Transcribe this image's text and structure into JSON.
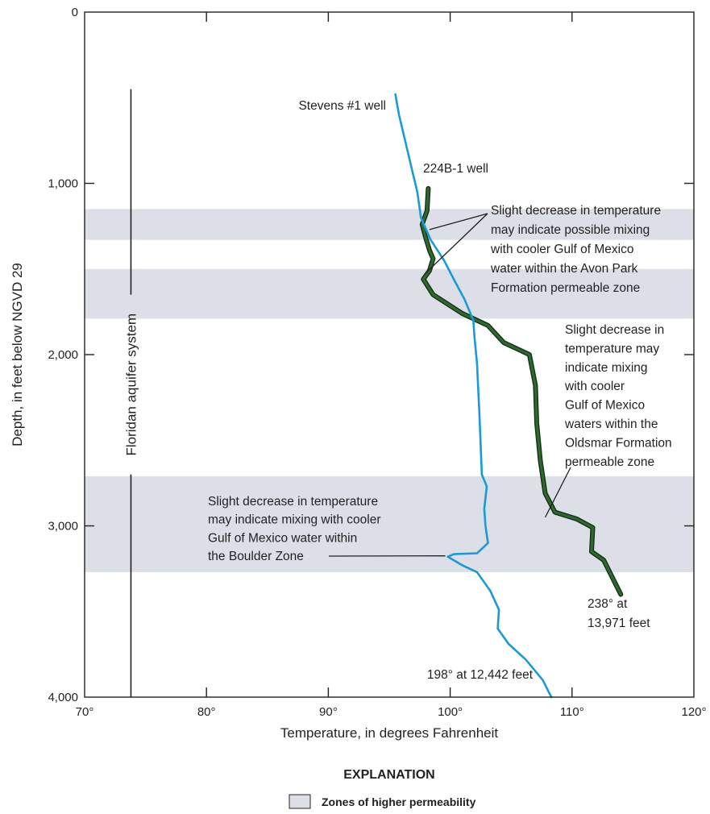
{
  "chart_data": {
    "type": "line",
    "orientation": "depth-profile",
    "xlabel": "Temperature, in degrees Fahrenheit",
    "ylabel": "Depth, in feet below NGVD 29",
    "xlim": [
      70,
      120
    ],
    "ylim": [
      0,
      4000
    ],
    "y_inverted": true,
    "x_ticks": [
      {
        "value": 70,
        "label": "70°"
      },
      {
        "value": 80,
        "label": "80°"
      },
      {
        "value": 90,
        "label": "90°"
      },
      {
        "value": 100,
        "label": "100°"
      },
      {
        "value": 110,
        "label": "110°"
      },
      {
        "value": 120,
        "label": "120°"
      }
    ],
    "y_ticks": [
      {
        "value": 0,
        "label": "0"
      },
      {
        "value": 1000,
        "label": "1,000"
      },
      {
        "value": 2000,
        "label": "2,000"
      },
      {
        "value": 3000,
        "label": "3,000"
      },
      {
        "value": 4000,
        "label": "4,000"
      }
    ],
    "grid": false,
    "colors": {
      "stevens": "#1a9ad6",
      "well224": "#2f6a2c",
      "well224_outline": "#13301a",
      "zone": "#dcdfe8",
      "axis": "#231f20"
    },
    "zones": [
      {
        "top": 1150,
        "bottom": 1330
      },
      {
        "top": 1500,
        "bottom": 1790
      },
      {
        "top": 2710,
        "bottom": 3270
      }
    ],
    "aquifer_bar": {
      "label": "Floridan aquifer system",
      "x": 73.8,
      "top": 450,
      "bottom": 4000
    },
    "series": [
      {
        "name": "Stevens #1 well",
        "color": "#1a9ad6",
        "points": [
          [
            95.5,
            480
          ],
          [
            95.8,
            600
          ],
          [
            96.3,
            750
          ],
          [
            96.8,
            900
          ],
          [
            97.3,
            1050
          ],
          [
            97.6,
            1200
          ],
          [
            98.4,
            1330
          ],
          [
            99.5,
            1450
          ],
          [
            100.3,
            1560
          ],
          [
            101.2,
            1680
          ],
          [
            101.9,
            1800
          ],
          [
            102.0,
            1900
          ],
          [
            102.2,
            2050
          ],
          [
            102.4,
            2350
          ],
          [
            102.6,
            2700
          ],
          [
            103.0,
            2770
          ],
          [
            102.8,
            2900
          ],
          [
            102.9,
            3000
          ],
          [
            103.1,
            3100
          ],
          [
            102.2,
            3160
          ],
          [
            100.3,
            3165
          ],
          [
            99.8,
            3180
          ],
          [
            101.0,
            3230
          ],
          [
            102.2,
            3270
          ],
          [
            103.3,
            3380
          ],
          [
            104.0,
            3490
          ],
          [
            103.9,
            3600
          ],
          [
            104.8,
            3690
          ],
          [
            106.2,
            3780
          ],
          [
            107.6,
            3900
          ],
          [
            108.3,
            4000
          ]
        ]
      },
      {
        "name": "224B-1 well",
        "color": "#2f6a2c",
        "points": [
          [
            98.2,
            1030
          ],
          [
            98.1,
            1160
          ],
          [
            97.7,
            1240
          ],
          [
            98.0,
            1320
          ],
          [
            98.3,
            1390
          ],
          [
            98.6,
            1440
          ],
          [
            98.3,
            1510
          ],
          [
            97.8,
            1560
          ],
          [
            98.6,
            1650
          ],
          [
            101.0,
            1760
          ],
          [
            103.1,
            1830
          ],
          [
            104.4,
            1930
          ],
          [
            106.5,
            2000
          ],
          [
            107.0,
            2180
          ],
          [
            107.1,
            2400
          ],
          [
            107.4,
            2620
          ],
          [
            107.8,
            2810
          ],
          [
            108.6,
            2920
          ],
          [
            110.4,
            2960
          ],
          [
            111.7,
            3010
          ],
          [
            111.6,
            3150
          ],
          [
            112.6,
            3200
          ],
          [
            114.0,
            3400
          ]
        ]
      }
    ],
    "labels": {
      "stevens_name": "Stevens #1 well",
      "well224_name": "224B-1 well",
      "ann1": [
        "Slight decrease in temperature",
        "may indicate possible mixing",
        "with cooler Gulf of Mexico",
        "water within the Avon Park",
        "Formation permeable zone"
      ],
      "ann2": [
        "Slight decrease in",
        "temperature may",
        "indicate mixing",
        "with cooler",
        "Gulf of Mexico",
        "waters within the",
        "Oldsmar Formation",
        "permeable zone"
      ],
      "ann3": [
        "Slight decrease in temperature",
        "may indicate mixing with cooler",
        "Gulf of Mexico water within",
        "the Boulder Zone"
      ],
      "end224": [
        "238° at",
        "13,971 feet"
      ],
      "endStevens": "198° at 12,442 feet"
    },
    "legend": {
      "title": "EXPLANATION",
      "entries": [
        {
          "label": "Zones of higher permeability",
          "color": "#dcdfe8"
        }
      ]
    }
  }
}
